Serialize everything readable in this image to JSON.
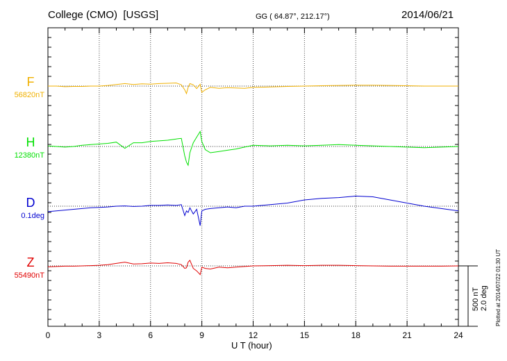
{
  "header": {
    "title": "College (CMO)",
    "source": "[USGS]",
    "coords": "GG ( 64.87°, 212.17°)",
    "date": "2014/06/21"
  },
  "plotted_note": "Plotted at 2014/07/22 01:30 UT",
  "scale": {
    "nt": "500 nT",
    "deg": "2.0 deg"
  },
  "colors": {
    "F": "#f0b000",
    "H": "#00e000",
    "D": "#0000d0",
    "Z": "#e00000",
    "axis": "#000000",
    "grid": "#444444"
  },
  "chart_data": {
    "type": "line",
    "xlabel": "U T (hour)",
    "xlim": [
      0,
      24
    ],
    "x_ticks": [
      "0",
      "3",
      "6",
      "9",
      "12",
      "15",
      "18",
      "21",
      "24"
    ],
    "scale_bar": "500 nT / 2.0 deg",
    "series": [
      {
        "name": "F",
        "baseline_label": "56820nT",
        "color": "#f0b000",
        "x": [
          0,
          0.5,
          1,
          1.5,
          2,
          2.5,
          3,
          3.5,
          4,
          4.5,
          5,
          5.5,
          6,
          6.5,
          7,
          7.5,
          7.8,
          8,
          8.1,
          8.2,
          8.3,
          8.5,
          8.7,
          8.9,
          9,
          9.2,
          9.5,
          10,
          10.5,
          11,
          11.5,
          12,
          13,
          14,
          15,
          16,
          17,
          18,
          19,
          20,
          21,
          22,
          23,
          24
        ],
        "values": [
          0,
          0,
          -10,
          -5,
          -5,
          0,
          0,
          10,
          25,
          40,
          25,
          35,
          30,
          40,
          45,
          50,
          20,
          -60,
          -120,
          -20,
          40,
          20,
          -40,
          30,
          -100,
          -60,
          -20,
          -35,
          -25,
          -30,
          -35,
          -20,
          -15,
          -5,
          0,
          5,
          10,
          15,
          15,
          10,
          5,
          0,
          0,
          0
        ]
      },
      {
        "name": "H",
        "baseline_label": "12380nT",
        "color": "#00e000",
        "x": [
          0,
          0.5,
          1,
          1.5,
          2,
          2.5,
          3,
          3.5,
          4,
          4.5,
          5,
          5.5,
          6,
          6.5,
          7,
          7.5,
          7.8,
          8,
          8.1,
          8.2,
          8.3,
          8.5,
          8.7,
          8.9,
          9,
          9.2,
          9.5,
          10,
          10.5,
          11,
          11.5,
          12,
          13,
          14,
          15,
          16,
          17,
          18,
          19,
          20,
          21,
          22,
          23,
          24
        ],
        "values": [
          10,
          0,
          -10,
          0,
          20,
          30,
          40,
          50,
          70,
          -30,
          60,
          60,
          80,
          90,
          100,
          120,
          130,
          -150,
          -250,
          -300,
          -100,
          60,
          150,
          240,
          80,
          -50,
          -100,
          -80,
          -60,
          -40,
          -10,
          20,
          10,
          20,
          10,
          20,
          30,
          20,
          10,
          0,
          -10,
          -20,
          -10,
          0
        ]
      },
      {
        "name": "D",
        "baseline_label": "0.1deg",
        "color": "#0000d0",
        "x": [
          0,
          0.5,
          1,
          1.5,
          2,
          2.5,
          3,
          3.5,
          4,
          4.5,
          5,
          5.5,
          6,
          6.5,
          7,
          7.5,
          7.8,
          8,
          8.1,
          8.2,
          8.3,
          8.5,
          8.7,
          8.9,
          9,
          9.2,
          9.5,
          10,
          10.5,
          11,
          11.5,
          12,
          13,
          14,
          15,
          16,
          17,
          18,
          19,
          20,
          21,
          22,
          23,
          24
        ],
        "values": [
          -0.35,
          -0.3,
          -0.25,
          -0.2,
          -0.15,
          -0.1,
          -0.08,
          -0.05,
          0,
          0.02,
          -0.02,
          0,
          0.05,
          0.05,
          0.08,
          0.05,
          0.1,
          -0.6,
          -0.3,
          -0.4,
          -0.1,
          -0.5,
          -0.2,
          -1.25,
          -0.3,
          -0.2,
          -0.15,
          -0.1,
          -0.05,
          -0.1,
          0,
          0,
          0.1,
          0.2,
          0.4,
          0.5,
          0.55,
          0.65,
          0.6,
          0.4,
          0.2,
          0,
          -0.15,
          -0.3
        ]
      },
      {
        "name": "Z",
        "baseline_label": "55490nT",
        "color": "#e00000",
        "x": [
          0,
          0.5,
          1,
          1.5,
          2,
          2.5,
          3,
          3.5,
          4,
          4.5,
          5,
          5.5,
          6,
          6.5,
          7,
          7.5,
          7.8,
          8,
          8.1,
          8.2,
          8.3,
          8.5,
          8.7,
          8.9,
          9,
          9.2,
          9.5,
          10,
          10.5,
          11,
          11.5,
          12,
          13,
          14,
          15,
          16,
          17,
          18,
          19,
          20,
          21,
          22,
          23,
          24
        ],
        "values": [
          -15,
          -10,
          -5,
          -5,
          0,
          5,
          10,
          20,
          40,
          60,
          30,
          35,
          45,
          40,
          50,
          40,
          20,
          -40,
          -30,
          60,
          90,
          -40,
          -80,
          -140,
          -20,
          -40,
          -50,
          -20,
          -30,
          -20,
          -10,
          0,
          5,
          10,
          5,
          10,
          10,
          5,
          0,
          -5,
          -5,
          -5,
          -5,
          0
        ]
      }
    ]
  }
}
